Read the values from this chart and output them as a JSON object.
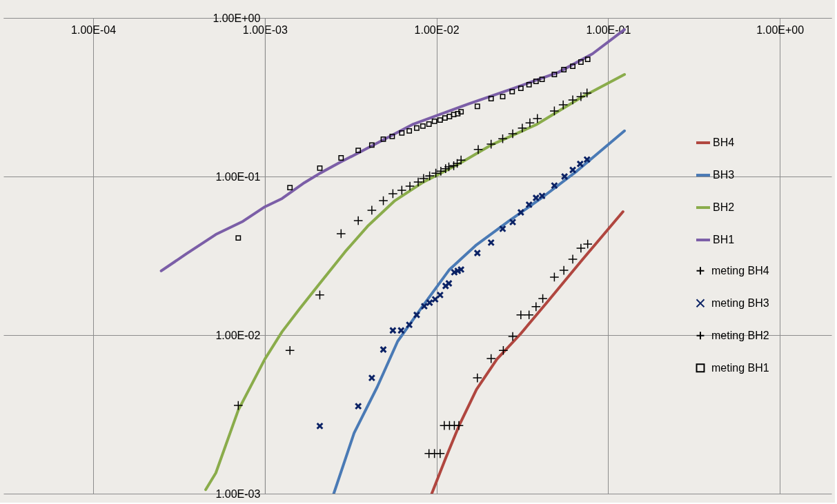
{
  "chart_data": {
    "type": "line",
    "xlim": [
      3e-05,
      2
    ],
    "ylim": [
      0.001,
      1
    ],
    "log": "xy",
    "grid": true,
    "legend": "right",
    "line_style": "solid",
    "xticks": [
      {
        "value": 0.0001,
        "label": "1.00E-04"
      },
      {
        "value": 0.001,
        "label": "1.00E-03"
      },
      {
        "value": 0.01,
        "label": "1.00E-02"
      },
      {
        "value": 0.1,
        "label": "1.00E-01"
      },
      {
        "value": 1,
        "label": "1.00E+00"
      }
    ],
    "yticks": [
      {
        "value": 0.001,
        "label": "1.00E-03"
      },
      {
        "value": 0.01,
        "label": "1.00E-02"
      },
      {
        "value": 0.1,
        "label": "1.00E-01"
      },
      {
        "value": 1,
        "label": "1.00E+00"
      }
    ],
    "series": [
      {
        "name": "BH4",
        "color": "#b0463f",
        "marker": "none",
        "x": [
          0.00938,
          0.0113,
          0.0135,
          0.0171,
          0.0225,
          0.0307,
          0.0443,
          0.07,
          0.122
        ],
        "values": [
          0.001,
          0.00167,
          0.00267,
          0.00454,
          0.00705,
          0.0101,
          0.0162,
          0.0295,
          0.06
        ]
      },
      {
        "name": "BH3",
        "color": "#4a7ab5",
        "marker": "none",
        "x": [
          0.00252,
          0.00331,
          0.00452,
          0.00594,
          0.00826,
          0.0119,
          0.0171,
          0.0263,
          0.0405,
          0.0656,
          0.1245
        ],
        "values": [
          0.001,
          0.00241,
          0.00472,
          0.00914,
          0.0151,
          0.0259,
          0.0371,
          0.0522,
          0.0726,
          0.108,
          0.194
        ]
      },
      {
        "name": "BH2",
        "color": "#8aac4b",
        "marker": "none",
        "x": [
          0.000452,
          0.000518,
          0.0007,
          0.001,
          0.00126,
          0.00159,
          0.00209,
          0.00294,
          0.00397,
          0.00572,
          0.00826,
          0.0135,
          0.0206,
          0.038,
          0.07,
          0.1245
        ],
        "values": [
          0.00106,
          0.00135,
          0.00336,
          0.00705,
          0.0105,
          0.0146,
          0.0212,
          0.0336,
          0.0486,
          0.0704,
          0.0914,
          0.12,
          0.157,
          0.212,
          0.316,
          0.44
        ]
      },
      {
        "name": "BH1",
        "color": "#7b5ea7",
        "marker": "none",
        "x": [
          0.000249,
          0.00035,
          0.000518,
          0.000746,
          0.001,
          0.00126,
          0.0017,
          0.0021,
          0.00275,
          0.00397,
          0.00732,
          0.0152,
          0.0281,
          0.0513,
          0.0811,
          0.1245
        ],
        "values": [
          0.0254,
          0.0326,
          0.0431,
          0.0522,
          0.0644,
          0.0726,
          0.0914,
          0.105,
          0.123,
          0.151,
          0.214,
          0.286,
          0.36,
          0.454,
          0.594,
          0.844
        ]
      },
      {
        "name": "meting BH4",
        "type": "scatter",
        "color": "#000000",
        "marker": "cross",
        "x": [
          0.00904,
          0.00973,
          0.0105,
          0.0111,
          0.0119,
          0.0127,
          0.0135,
          0.0173,
          0.0208,
          0.0245,
          0.0278,
          0.031,
          0.0346,
          0.038,
          0.0416,
          0.0486,
          0.0552,
          0.0622,
          0.0694,
          0.076
        ],
        "values": [
          0.00179,
          0.00179,
          0.00179,
          0.00269,
          0.00269,
          0.00269,
          0.00269,
          0.00537,
          0.00711,
          0.008,
          0.0098,
          0.0134,
          0.0134,
          0.0151,
          0.017,
          0.0232,
          0.0256,
          0.0301,
          0.0353,
          0.0375
        ]
      },
      {
        "name": "meting BH3",
        "type": "scatter",
        "color": "#0b2265",
        "marker": "x",
        "x": [
          0.00209,
          0.0035,
          0.0042,
          0.0049,
          0.00557,
          0.00622,
          0.00694,
          0.00767,
          0.00849,
          0.00912,
          0.00982,
          0.0105,
          0.0113,
          0.0118,
          0.0127,
          0.0133,
          0.0139,
          0.0173,
          0.0208,
          0.0243,
          0.0278,
          0.031,
          0.0346,
          0.038,
          0.0412,
          0.0486,
          0.0557,
          0.0622,
          0.0687,
          0.0753
        ],
        "values": [
          0.00267,
          0.00356,
          0.00537,
          0.0081,
          0.0107,
          0.0107,
          0.0116,
          0.0134,
          0.0152,
          0.016,
          0.0168,
          0.0179,
          0.0204,
          0.0212,
          0.0249,
          0.0254,
          0.0259,
          0.0329,
          0.0383,
          0.0468,
          0.0516,
          0.0594,
          0.0664,
          0.0733,
          0.0755,
          0.0877,
          0.1,
          0.11,
          0.12,
          0.128
        ]
      },
      {
        "name": "meting BH2",
        "type": "scatter",
        "color": "#000000",
        "marker": "cross",
        "x": [
          0.0007,
          0.0014,
          0.00209,
          0.00278,
          0.0035,
          0.0042,
          0.0049,
          0.00557,
          0.00628,
          0.007,
          0.00782,
          0.00841,
          0.00912,
          0.00991,
          0.0106,
          0.0113,
          0.0118,
          0.0126,
          0.0132,
          0.0139,
          0.0175,
          0.0208,
          0.0243,
          0.0278,
          0.0316,
          0.035,
          0.0387,
          0.0486,
          0.0547,
          0.0622,
          0.0694,
          0.0753
        ],
        "values": [
          0.0036,
          0.008,
          0.0179,
          0.0436,
          0.0527,
          0.0613,
          0.0704,
          0.0779,
          0.0819,
          0.0869,
          0.0923,
          0.0971,
          0.101,
          0.105,
          0.108,
          0.112,
          0.115,
          0.117,
          0.121,
          0.127,
          0.148,
          0.16,
          0.173,
          0.186,
          0.202,
          0.218,
          0.232,
          0.259,
          0.283,
          0.304,
          0.319,
          0.336
        ]
      },
      {
        "name": "meting BH1",
        "type": "scatter",
        "color": "#000000",
        "marker": "square",
        "x": [
          0.0007,
          0.0014,
          0.00209,
          0.00278,
          0.0035,
          0.0042,
          0.0049,
          0.00552,
          0.00628,
          0.00694,
          0.00767,
          0.00833,
          0.00904,
          0.00973,
          0.0105,
          0.0112,
          0.0119,
          0.0126,
          0.0133,
          0.0139,
          0.0173,
          0.0208,
          0.0243,
          0.0276,
          0.031,
          0.0346,
          0.038,
          0.0412,
          0.0486,
          0.0552,
          0.0622,
          0.0694,
          0.076
        ],
        "values": [
          0.041,
          0.0851,
          0.113,
          0.131,
          0.146,
          0.158,
          0.172,
          0.179,
          0.188,
          0.194,
          0.202,
          0.208,
          0.214,
          0.223,
          0.227,
          0.234,
          0.239,
          0.246,
          0.249,
          0.256,
          0.277,
          0.31,
          0.319,
          0.343,
          0.36,
          0.379,
          0.398,
          0.41,
          0.44,
          0.472,
          0.496,
          0.527,
          0.548
        ]
      }
    ]
  }
}
